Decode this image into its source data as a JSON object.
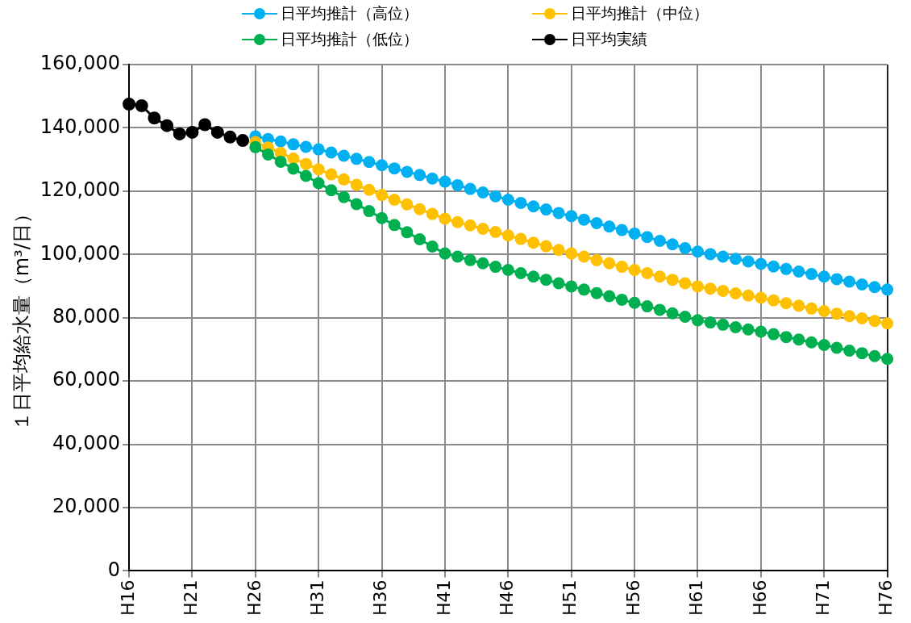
{
  "chart_data": {
    "type": "line",
    "ylabel": "１日平均給水量（m³/日）",
    "categories": [
      "H16",
      null,
      null,
      null,
      null,
      "H21",
      null,
      null,
      null,
      null,
      "H26",
      null,
      null,
      null,
      null,
      "H31",
      null,
      null,
      null,
      null,
      "H36",
      null,
      null,
      null,
      null,
      "H41",
      null,
      null,
      null,
      null,
      "H46",
      null,
      null,
      null,
      null,
      "H51",
      null,
      null,
      null,
      null,
      "H56",
      null,
      null,
      null,
      null,
      "H61",
      null,
      null,
      null,
      null,
      "H66",
      null,
      null,
      null,
      null,
      "H71",
      null,
      null,
      null,
      null,
      "H76"
    ],
    "series": [
      {
        "name": "日平均推計（高位）",
        "color": "#00b0f0",
        "values": [
          null,
          null,
          null,
          null,
          null,
          null,
          null,
          null,
          null,
          null,
          137300,
          136500,
          135700,
          134800,
          134000,
          133200,
          132200,
          131200,
          130200,
          129200,
          128200,
          127200,
          126100,
          125100,
          124000,
          123000,
          121900,
          120700,
          119600,
          118400,
          117300,
          116300,
          115200,
          114200,
          113100,
          112100,
          111000,
          109900,
          108800,
          107700,
          106600,
          105500,
          104300,
          103200,
          102000,
          100900,
          100100,
          99300,
          98600,
          97800,
          97000,
          96200,
          95400,
          94600,
          93800,
          93000,
          92200,
          91400,
          90500,
          89700,
          88900
        ]
      },
      {
        "name": "日平均推計（中位）",
        "color": "#ffc000",
        "values": [
          null,
          null,
          null,
          null,
          null,
          null,
          null,
          null,
          null,
          null,
          135500,
          133800,
          132100,
          130300,
          128600,
          126900,
          125300,
          123700,
          122000,
          120400,
          118800,
          117300,
          115800,
          114300,
          112800,
          111300,
          110200,
          109200,
          108100,
          107100,
          106000,
          104900,
          103700,
          102600,
          101400,
          100300,
          99300,
          98200,
          97200,
          96100,
          95100,
          94100,
          93000,
          92000,
          90900,
          89900,
          89200,
          88500,
          87700,
          87000,
          86300,
          85500,
          84600,
          83800,
          82900,
          82100,
          81300,
          80500,
          79800,
          79000,
          78200
        ]
      },
      {
        "name": "日平均推計（低位）",
        "color": "#00b050",
        "values": [
          null,
          null,
          null,
          null,
          null,
          null,
          null,
          null,
          null,
          null,
          133900,
          131600,
          129300,
          127100,
          124800,
          122500,
          120300,
          118100,
          115900,
          113700,
          111500,
          109300,
          107000,
          104800,
          102500,
          100300,
          99300,
          98200,
          97200,
          96100,
          95100,
          94100,
          93000,
          92000,
          90900,
          89900,
          88900,
          87800,
          86800,
          85700,
          84700,
          83600,
          82500,
          81400,
          80300,
          79200,
          78500,
          77800,
          77000,
          76300,
          75600,
          74800,
          73900,
          73100,
          72200,
          71400,
          70500,
          69600,
          68800,
          67900,
          67000
        ]
      },
      {
        "name": "日平均実績",
        "color": "#000000",
        "values": [
          147500,
          147000,
          143100,
          140700,
          138100,
          138600,
          141000,
          138600,
          137100,
          136000,
          null,
          null,
          null,
          null,
          null,
          null,
          null,
          null,
          null,
          null,
          null,
          null,
          null,
          null,
          null,
          null,
          null,
          null,
          null,
          null,
          null,
          null,
          null,
          null,
          null,
          null,
          null,
          null,
          null,
          null,
          null,
          null,
          null,
          null,
          null,
          null,
          null,
          null,
          null,
          null,
          null,
          null,
          null,
          null,
          null,
          null,
          null,
          null,
          null,
          null,
          null
        ]
      }
    ],
    "ylim": [
      0,
      160000
    ],
    "yticks": [
      {
        "value": 0,
        "label": "0"
      },
      {
        "value": 20000,
        "label": "20,000"
      },
      {
        "value": 40000,
        "label": "40,000"
      },
      {
        "value": 60000,
        "label": "60,000"
      },
      {
        "value": 80000,
        "label": "80,000"
      },
      {
        "value": 100000,
        "label": "100,000"
      },
      {
        "value": 120000,
        "label": "120,000"
      },
      {
        "value": 140000,
        "label": "140,000"
      },
      {
        "value": 160000,
        "label": "160,000"
      }
    ],
    "grid": true,
    "legend": "top",
    "marker": "circle",
    "line_style": "solid"
  }
}
